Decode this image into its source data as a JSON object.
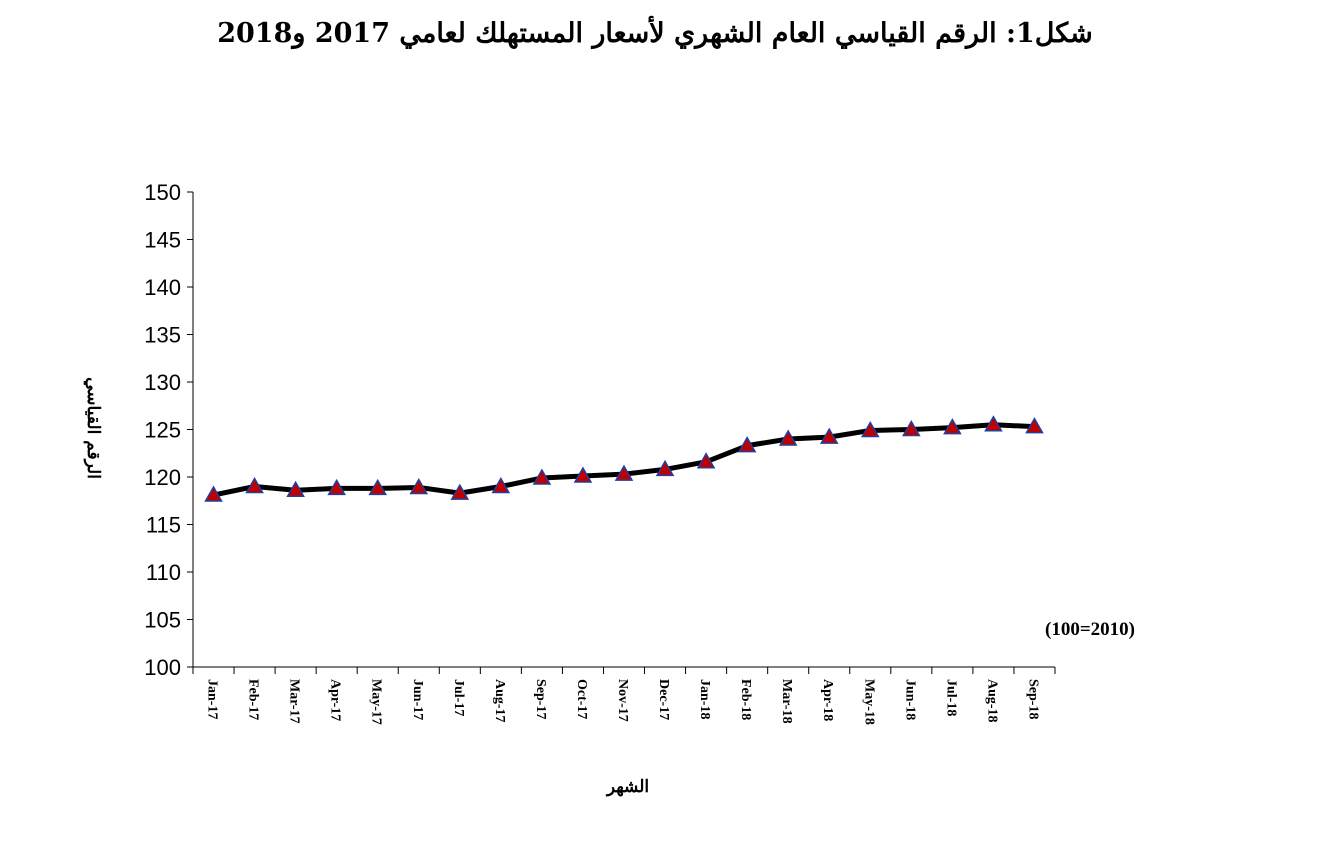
{
  "chart_data": {
    "type": "line",
    "title": "شكل1: الرقم القياسي العام الشهري لأسعار المستهلك لعامي 2017 و2018",
    "xlabel": "الشهر",
    "ylabel": "الرقم القياسي",
    "note": "(100=2010)",
    "categories": [
      "Jan-17",
      "Feb-17",
      "Mar-17",
      "Apr-17",
      "May-17",
      "Jun-17",
      "Jul-17",
      "Aug-17",
      "Sep-17",
      "Oct-17",
      "Nov-17",
      "Dec-17",
      "Jan-18",
      "Feb-18",
      "Mar-18",
      "Apr-18",
      "May-18",
      "Jun-18",
      "Jul-18",
      "Aug-18",
      "Sep-18"
    ],
    "series": [
      {
        "values": [
          118.1,
          119.0,
          118.6,
          118.8,
          118.8,
          118.9,
          118.3,
          119.0,
          119.9,
          120.1,
          120.3,
          120.8,
          121.6,
          123.3,
          124.0,
          124.2,
          124.9,
          125.0,
          125.2,
          125.5,
          125.3
        ]
      }
    ],
    "ylim": [
      100,
      150
    ],
    "yticks": [
      "100",
      "105",
      "110",
      "115",
      "120",
      "125",
      "130",
      "135",
      "140",
      "145",
      "150"
    ],
    "grid": false,
    "legend": "none",
    "colors": {
      "line": "#000000",
      "marker_fill": "#c00000",
      "marker_edge": "#1f3fa0"
    }
  }
}
